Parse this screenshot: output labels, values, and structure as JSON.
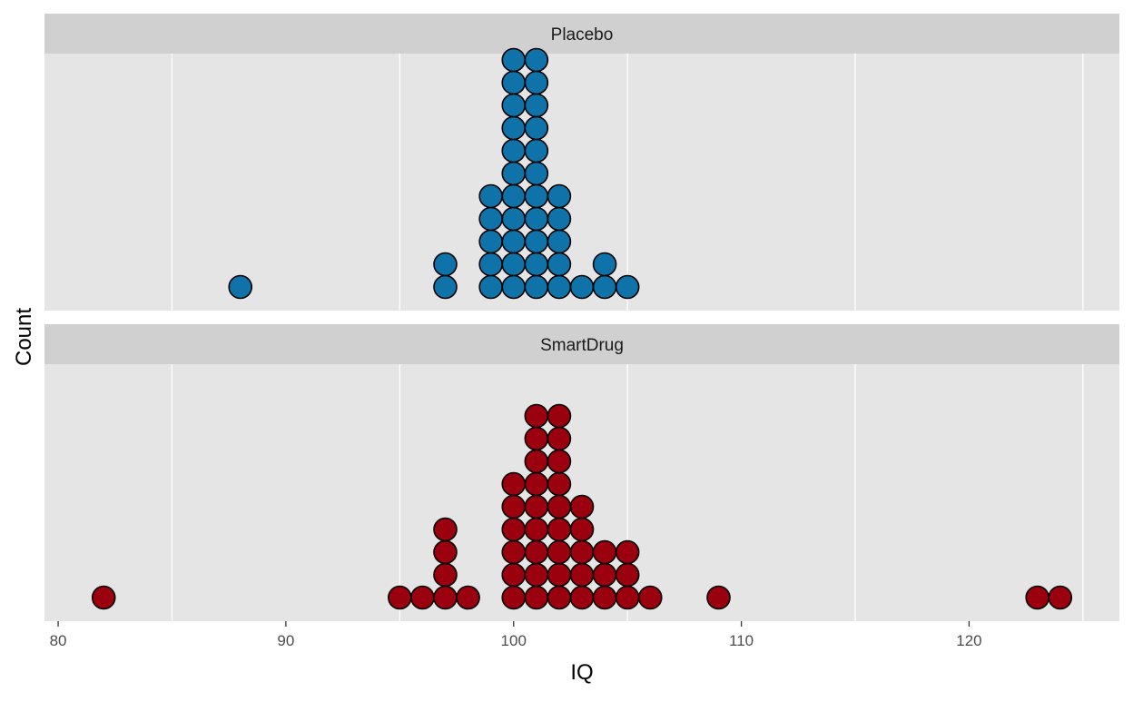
{
  "chart_data": {
    "type": "dotplot",
    "xlabel": "IQ",
    "ylabel": "Count",
    "xlim": [
      79.4,
      126.6
    ],
    "x_ticks": [
      80,
      90,
      100,
      110,
      120
    ],
    "x_tick_labels": [
      "80",
      "90",
      "100",
      "110",
      "120"
    ],
    "grid": true,
    "legend": "none",
    "panels": [
      {
        "name": "Placebo",
        "color": "#0f72a8",
        "bins": [
          {
            "x": 88,
            "count": 1
          },
          {
            "x": 97,
            "count": 2
          },
          {
            "x": 99,
            "count": 5
          },
          {
            "x": 100,
            "count": 11
          },
          {
            "x": 101,
            "count": 11
          },
          {
            "x": 102,
            "count": 5
          },
          {
            "x": 103,
            "count": 1
          },
          {
            "x": 104,
            "count": 2
          },
          {
            "x": 105,
            "count": 1
          }
        ]
      },
      {
        "name": "SmartDrug",
        "color": "#9b000e",
        "bins": [
          {
            "x": 82,
            "count": 1
          },
          {
            "x": 95,
            "count": 1
          },
          {
            "x": 96,
            "count": 1
          },
          {
            "x": 97,
            "count": 4
          },
          {
            "x": 98,
            "count": 1
          },
          {
            "x": 100,
            "count": 6
          },
          {
            "x": 101,
            "count": 9
          },
          {
            "x": 102,
            "count": 9
          },
          {
            "x": 103,
            "count": 5
          },
          {
            "x": 104,
            "count": 3
          },
          {
            "x": 105,
            "count": 3
          },
          {
            "x": 106,
            "count": 1
          },
          {
            "x": 109,
            "count": 1
          },
          {
            "x": 123,
            "count": 1
          },
          {
            "x": 124,
            "count": 1
          }
        ]
      }
    ]
  }
}
